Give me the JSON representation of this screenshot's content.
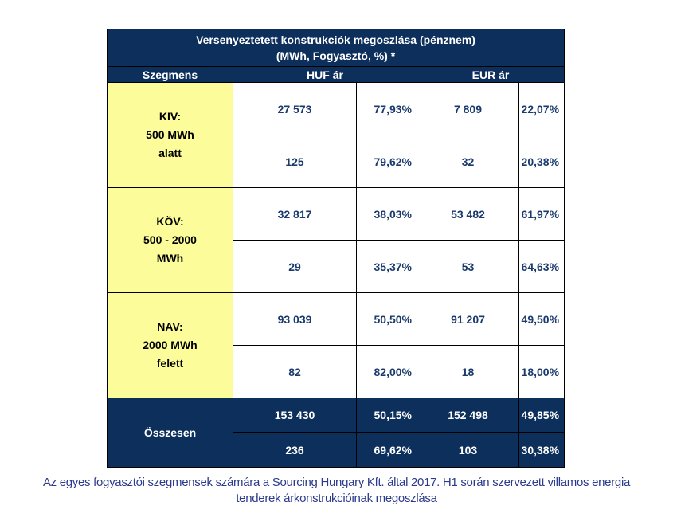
{
  "table": {
    "title_line1": "Versenyeztetett konstrukciók megoszlása (pénznem)",
    "title_line2": "(MWh, Fogyasztó, %) *",
    "headers": {
      "segment": "Szegmens",
      "huf": "HUF ár",
      "eur": "EUR ár"
    },
    "segments": [
      {
        "label_lines": [
          "KIV:",
          "500 MWh",
          "alatt"
        ],
        "rows": [
          {
            "huf_value": "27 573",
            "huf_pct": "77,93%",
            "eur_value": "7 809",
            "eur_pct": "22,07%"
          },
          {
            "huf_value": "125",
            "huf_pct": "79,62%",
            "eur_value": "32",
            "eur_pct": "20,38%"
          }
        ]
      },
      {
        "label_lines": [
          "KÖV:",
          "500 - 2000",
          "MWh"
        ],
        "rows": [
          {
            "huf_value": "32 817",
            "huf_pct": "38,03%",
            "eur_value": "53 482",
            "eur_pct": "61,97%"
          },
          {
            "huf_value": "29",
            "huf_pct": "35,37%",
            "eur_value": "53",
            "eur_pct": "64,63%"
          }
        ]
      },
      {
        "label_lines": [
          "NAV:",
          "2000 MWh",
          "felett"
        ],
        "rows": [
          {
            "huf_value": "93 039",
            "huf_pct": "50,50%",
            "eur_value": "91 207",
            "eur_pct": "49,50%"
          },
          {
            "huf_value": "82",
            "huf_pct": "82,00%",
            "eur_value": "18",
            "eur_pct": "18,00%"
          }
        ]
      }
    ],
    "total": {
      "label": "Összesen",
      "rows": [
        {
          "huf_value": "153 430",
          "huf_pct": "50,15%",
          "eur_value": "152 498",
          "eur_pct": "49,85%"
        },
        {
          "huf_value": "236",
          "huf_pct": "69,62%",
          "eur_value": "103",
          "eur_pct": "30,38%"
        }
      ]
    }
  },
  "caption": {
    "line1": "Az egyes fogyasztói szegmensek számára a Sourcing Hungary Kft. által 2017. H1 során szervezett villamos energia",
    "line2": "tenderek árkonstrukcióinak megoszlása"
  }
}
